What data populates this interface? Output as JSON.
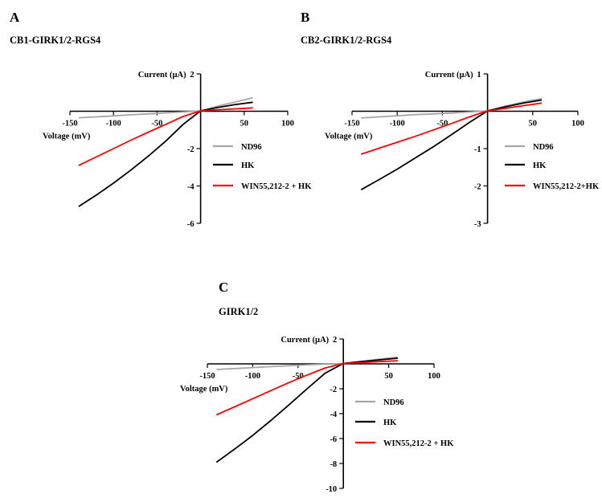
{
  "chart_data": [
    {
      "type": "line",
      "panel_label": "A",
      "title": "CB1-GIRK1/2-RGS4",
      "xlabel": "Voltage (mV)",
      "ylabel": "Current (µA)",
      "xlim": [
        -150,
        100
      ],
      "ylim": [
        -6,
        2
      ],
      "xticks": [
        -150,
        -100,
        -50,
        50,
        100
      ],
      "yticks": [
        2,
        -2,
        -4,
        -6
      ],
      "grid": false,
      "legend_position": "right of y-axis, below x-axis",
      "series": [
        {
          "name": "ND96",
          "color": "#a6a6a6",
          "x": [
            -140,
            -120,
            -100,
            -80,
            -60,
            -40,
            -20,
            0,
            20,
            40,
            60
          ],
          "y": [
            -0.35,
            -0.3,
            -0.25,
            -0.19,
            -0.14,
            -0.09,
            -0.04,
            0.02,
            0.28,
            0.5,
            0.72
          ]
        },
        {
          "name": "HK",
          "color": "#000000",
          "x": [
            -140,
            -120,
            -100,
            -80,
            -60,
            -40,
            -20,
            0,
            20,
            40,
            60
          ],
          "y": [
            -5.1,
            -4.5,
            -3.85,
            -3.15,
            -2.4,
            -1.6,
            -0.7,
            0.02,
            0.2,
            0.36,
            0.48
          ]
        },
        {
          "name": "WIN55,212-2 + HK",
          "color": "#ff0000",
          "x": [
            -140,
            -120,
            -100,
            -80,
            -60,
            -40,
            -20,
            0,
            20,
            40,
            60
          ],
          "y": [
            -2.9,
            -2.45,
            -2.0,
            -1.55,
            -1.12,
            -0.7,
            -0.28,
            0.02,
            0.08,
            0.13,
            0.18
          ]
        }
      ]
    },
    {
      "type": "line",
      "panel_label": "B",
      "title": "CB2-GIRK1/2-RGS4",
      "xlabel": "Voltage (mV)",
      "ylabel": "Current (µA)",
      "xlim": [
        -150,
        100
      ],
      "ylim": [
        -3,
        1
      ],
      "xticks": [
        -150,
        -100,
        -50,
        50,
        100
      ],
      "yticks": [
        1,
        -1,
        -2,
        -3
      ],
      "grid": false,
      "legend_position": "right of y-axis, below x-axis",
      "series": [
        {
          "name": "ND96",
          "color": "#a6a6a6",
          "x": [
            -140,
            -120,
            -100,
            -80,
            -60,
            -40,
            -20,
            0,
            20,
            40,
            60
          ],
          "y": [
            -0.18,
            -0.15,
            -0.12,
            -0.09,
            -0.07,
            -0.05,
            -0.02,
            0.01,
            0.14,
            0.25,
            0.34
          ]
        },
        {
          "name": "HK",
          "color": "#000000",
          "x": [
            -140,
            -120,
            -100,
            -80,
            -60,
            -40,
            -20,
            0,
            20,
            40,
            60
          ],
          "y": [
            -2.1,
            -1.83,
            -1.55,
            -1.25,
            -0.95,
            -0.63,
            -0.3,
            0.01,
            0.12,
            0.22,
            0.3
          ]
        },
        {
          "name": "WIN55,212-2+HK",
          "color": "#ff0000",
          "x": [
            -140,
            -120,
            -100,
            -80,
            -60,
            -40,
            -20,
            0,
            20,
            40,
            60
          ],
          "y": [
            -1.15,
            -0.99,
            -0.83,
            -0.67,
            -0.5,
            -0.33,
            -0.15,
            0.01,
            0.08,
            0.15,
            0.22
          ]
        }
      ]
    },
    {
      "type": "line",
      "panel_label": "C",
      "title": "GIRK1/2",
      "xlabel": "Voltage (mV)",
      "ylabel": "Current (µA)",
      "xlim": [
        -150,
        100
      ],
      "ylim": [
        -10,
        2
      ],
      "xticks": [
        -150,
        -100,
        -50,
        50,
        100
      ],
      "yticks": [
        2,
        -2,
        -4,
        -6,
        -8,
        -10
      ],
      "grid": false,
      "legend_position": "right of y-axis, below x-axis",
      "series": [
        {
          "name": "ND96",
          "color": "#a6a6a6",
          "x": [
            -140,
            -120,
            -100,
            -80,
            -60,
            -40,
            -20,
            0,
            20,
            40,
            60
          ],
          "y": [
            -0.45,
            -0.38,
            -0.3,
            -0.22,
            -0.15,
            -0.08,
            -0.02,
            0.03,
            0.2,
            0.38,
            0.55
          ]
        },
        {
          "name": "HK",
          "color": "#000000",
          "x": [
            -140,
            -120,
            -100,
            -80,
            -60,
            -40,
            -20,
            0,
            20,
            40,
            60
          ],
          "y": [
            -7.9,
            -6.85,
            -5.75,
            -4.55,
            -3.3,
            -2.0,
            -0.75,
            0.03,
            0.18,
            0.32,
            0.45
          ]
        },
        {
          "name": "WIN55,212-2 + HK",
          "color": "#ff0000",
          "x": [
            -140,
            -120,
            -100,
            -80,
            -60,
            -40,
            -20,
            0,
            20,
            40,
            60
          ],
          "y": [
            -4.1,
            -3.45,
            -2.8,
            -2.15,
            -1.5,
            -0.9,
            -0.33,
            0.03,
            0.1,
            0.18,
            0.25
          ]
        }
      ]
    }
  ]
}
